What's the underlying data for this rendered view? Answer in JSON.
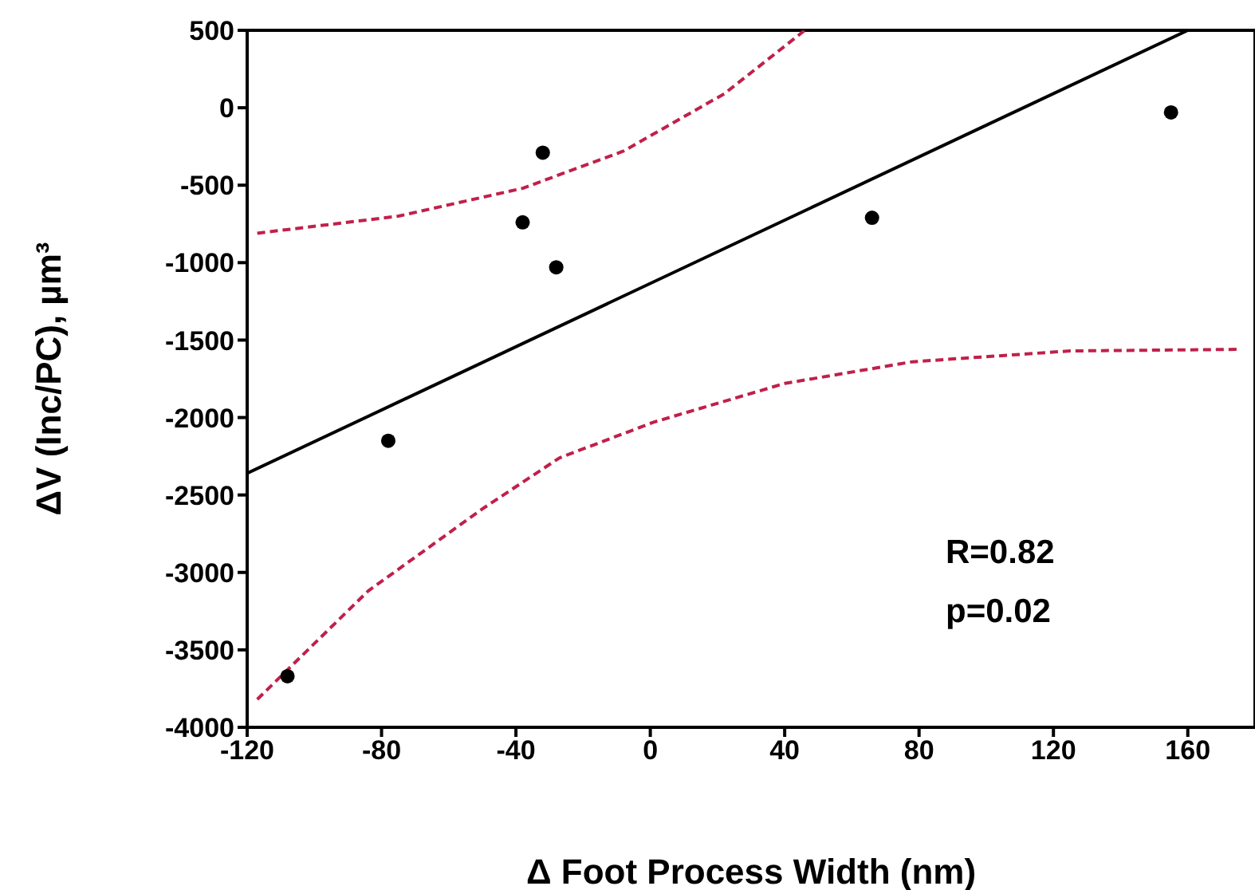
{
  "chart_data": {
    "type": "scatter",
    "xlabel": "Δ Foot Process Width (nm)",
    "ylabel": "ΔV (Inc/PC), µm³",
    "xlim": [
      -120,
      180
    ],
    "xticks": [
      -120,
      -80,
      -40,
      0,
      40,
      80,
      120,
      160
    ],
    "ylim": [
      -4000,
      500
    ],
    "yticks": [
      500,
      0,
      -500,
      -1000,
      -1500,
      -2000,
      -2500,
      -3000,
      -3500,
      -4000
    ],
    "grid": false,
    "marker": "circle",
    "annotations": [
      "R=0.82",
      "p=0.02"
    ],
    "series": [
      {
        "color": "#000000",
        "x": [
          -108,
          -78,
          -38,
          -32,
          -28,
          66,
          155
        ],
        "values": [
          -3670,
          -2150,
          -740,
          -290,
          -1030,
          -710,
          -30
        ]
      },
      {
        "type": "line",
        "color": "#000000",
        "marker": "none",
        "line_style": "solid",
        "x": [
          -120,
          160
        ],
        "values": [
          -2360,
          500
        ]
      },
      {
        "type": "line",
        "color": "#c0204a",
        "marker": "none",
        "line_style": "dashed",
        "x": [
          -117,
          -75,
          -38,
          -8,
          22,
          46
        ],
        "values": [
          -810,
          -700,
          -520,
          -280,
          90,
          500
        ]
      },
      {
        "type": "line",
        "color": "#c0204a",
        "marker": "none",
        "line_style": "dashed",
        "x": [
          -117,
          -84,
          -50,
          -27,
          1,
          40,
          78,
          125,
          175
        ],
        "values": [
          -3820,
          -3120,
          -2590,
          -2260,
          -2030,
          -1780,
          -1640,
          -1570,
          -1560
        ]
      }
    ]
  }
}
